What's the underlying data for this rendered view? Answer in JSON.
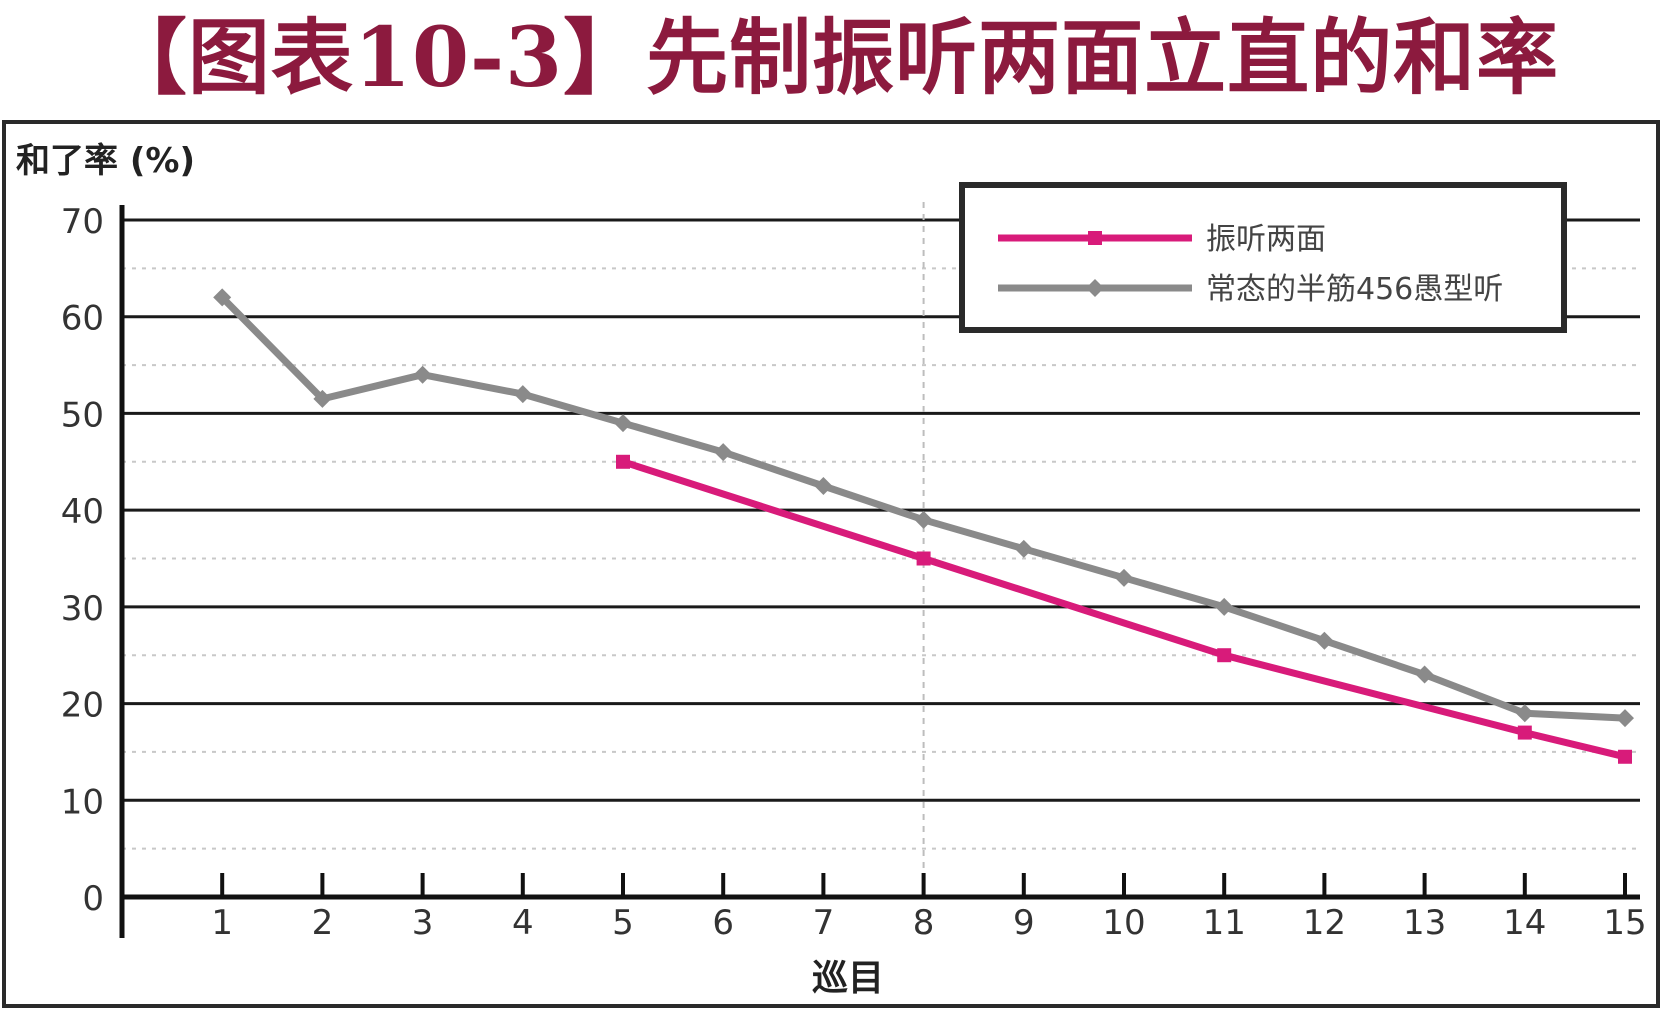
{
  "title": "【图表10-3】先制振听两面立直的和率",
  "chart_data": {
    "type": "line",
    "ylabel": "和了率 (%)",
    "xlabel": "巡目",
    "x": [
      1,
      2,
      3,
      4,
      5,
      6,
      7,
      8,
      9,
      10,
      11,
      12,
      13,
      14,
      15
    ],
    "xlim": [
      0,
      15
    ],
    "ylim": [
      0,
      70
    ],
    "y_ticks": [
      0,
      10,
      20,
      30,
      40,
      50,
      60,
      70
    ],
    "grid": true,
    "legend_position": "top-right",
    "series": [
      {
        "name": "振听两面",
        "color": "#d81b7a",
        "marker": "square",
        "x": [
          5,
          8,
          11,
          14,
          15
        ],
        "values": [
          45,
          35,
          25,
          17,
          14.5
        ]
      },
      {
        "name": "常态的半筋456愚型听",
        "color": "#8a8a8a",
        "marker": "diamond",
        "x": [
          1,
          2,
          3,
          4,
          5,
          6,
          7,
          8,
          9,
          10,
          11,
          12,
          13,
          14,
          15
        ],
        "values": [
          62,
          51.5,
          54,
          52,
          49,
          46,
          42.5,
          39,
          36,
          33,
          30,
          26.5,
          23,
          19,
          18.5
        ]
      }
    ]
  }
}
